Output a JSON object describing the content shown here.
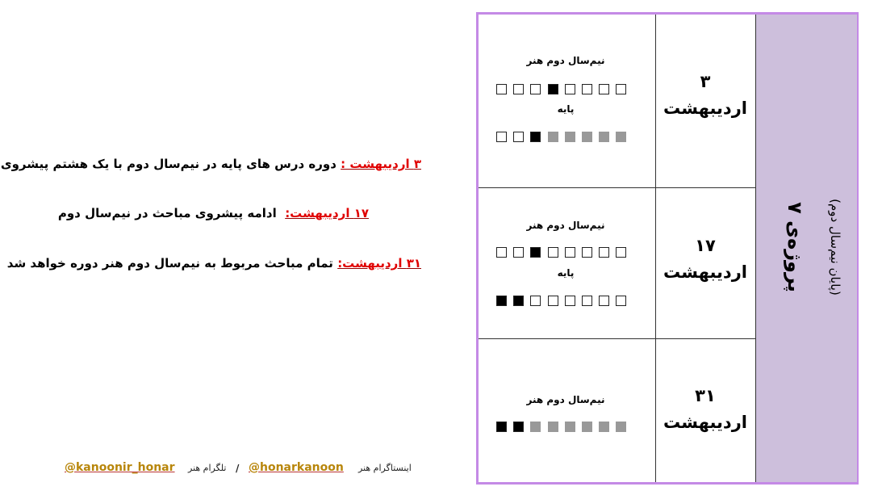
{
  "notes": [
    {
      "date": "۳ اردیبهشت :",
      "text": "دوره درس های پایه در نیم‌سال دوم با یک هشتم پیشروی"
    },
    {
      "date": "۱۷ اردیبهشت:",
      "text": "ادامه پیشروی مباحث در نیم‌سال دوم"
    },
    {
      "date": "۳۱ اردیبهشت:",
      "text": "تمام مباحث مربوط به نیم‌سال دوم هنر دوره خواهد شد"
    }
  ],
  "table": {
    "section": {
      "title": "پروژه‌ی ۷",
      "subtitle": "(پایان نیم‌سال دوم)"
    },
    "rows": [
      {
        "day": "۳",
        "month": "اردیبهشت",
        "labels": [
          "نیم‌سال دوم هنر",
          "پایه"
        ]
      },
      {
        "day": "۱۷",
        "month": "اردیبهشت",
        "labels": [
          "نیم‌سال دوم هنر",
          "پایه"
        ]
      },
      {
        "day": "۳۱",
        "month": "اردیبهشت",
        "labels": [
          "نیم‌سال دوم هنر"
        ]
      }
    ]
  },
  "footer": {
    "instagram_label": "اینستاگرام هنر",
    "instagram": "@honarkanoon",
    "separator": "/",
    "telegram_label": "تلگرام هنر",
    "telegram": "@kanoonir_honar"
  }
}
